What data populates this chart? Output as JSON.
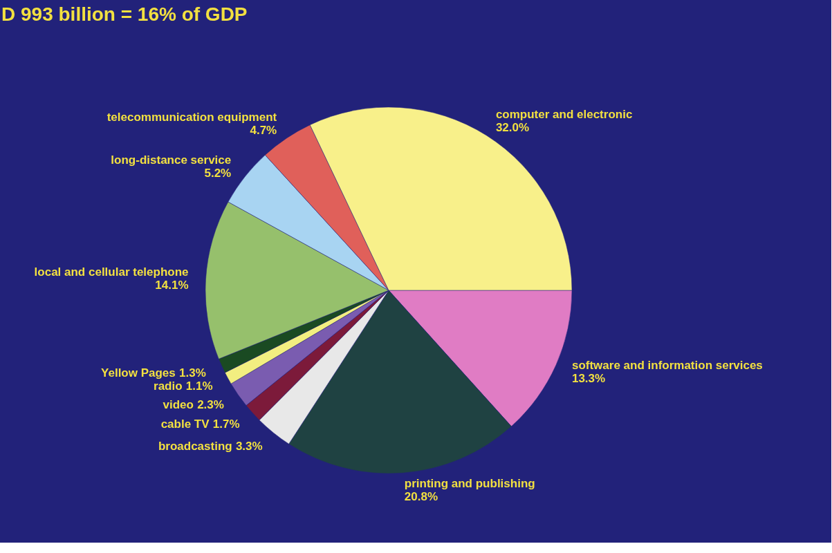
{
  "chart_data": {
    "type": "pie",
    "title": "D 993 billion = 16% of GDP",
    "categories": [
      "software and information services",
      "printing and publishing",
      "broadcasting",
      "cable TV",
      "video",
      "radio",
      "Yellow Pages",
      "local and cellular telephone",
      "long-distance service",
      "telecommunication equipment",
      "computer and electronic"
    ],
    "values": [
      13.3,
      20.8,
      3.3,
      1.7,
      2.3,
      1.1,
      1.3,
      14.1,
      5.2,
      4.7,
      32.0
    ],
    "value_labels": [
      "13.3%",
      "20.8%",
      "3.3%",
      "1.7%",
      "2.3%",
      "1.1%",
      "1.3%",
      "14.1%",
      "5.2%",
      "4.7%",
      "32.0%"
    ],
    "colors": [
      "#e07cc4",
      "#1f4242",
      "#e8e8e8",
      "#7c1a3a",
      "#7a5cb0",
      "#f2ee80",
      "#1a4a22",
      "#96c06c",
      "#a8d4f2",
      "#e0605a",
      "#f8f08a"
    ]
  }
}
